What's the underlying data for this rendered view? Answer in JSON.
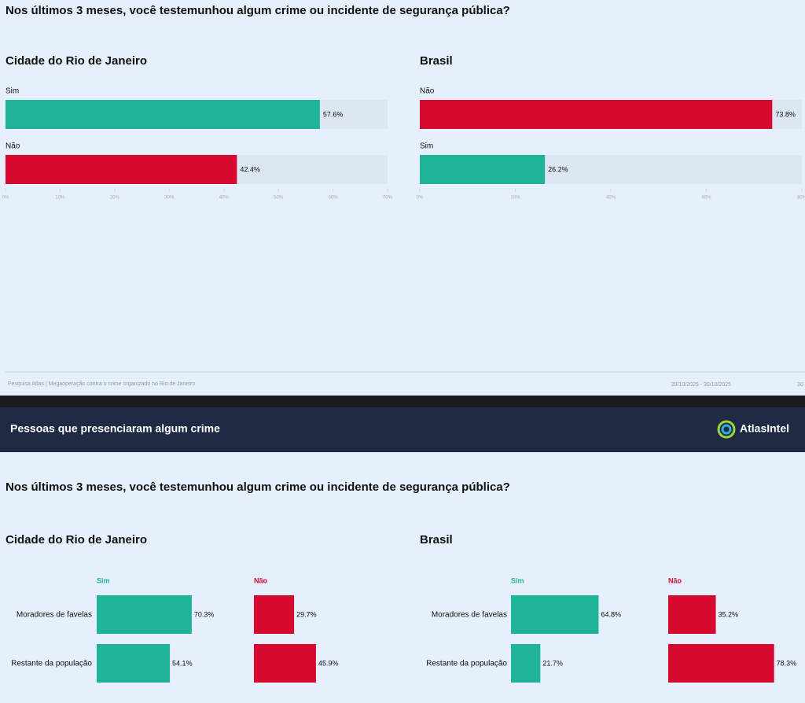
{
  "top": {
    "question": "Nos últimos 3 meses, você testemunhou algum crime ou incidente de segurança pública?",
    "footer": {
      "source": "Pesquisa Atlas | Megaoperação contra o crime organizado no Rio de Janeiro",
      "dates": "29/10/2025 - 30/10/2025",
      "page": "30"
    }
  },
  "banner": {
    "title": "Pessoas que presenciaram algum crime",
    "brand": "AtlasIntel"
  },
  "bottom": {
    "question": "Nos últimos 3 meses, você testemunhou algum crime ou incidente de segurança pública?"
  },
  "chart_data": [
    {
      "type": "hbar",
      "title": "Cidade do Rio de Janeiro",
      "categories": [
        "Sim",
        "Não"
      ],
      "values": [
        57.6,
        42.4
      ],
      "value_labels": [
        "57.6%",
        "42.4%"
      ],
      "colors": [
        "#1fb39a",
        "#d60a2e"
      ],
      "xlim": [
        0,
        70
      ],
      "xticks": [
        {
          "value": 0,
          "label": "0%"
        },
        {
          "value": 10,
          "label": "10%"
        },
        {
          "value": 20,
          "label": "20%"
        },
        {
          "value": 30,
          "label": "30%"
        },
        {
          "value": 40,
          "label": "40%"
        },
        {
          "value": 50,
          "label": "50%"
        },
        {
          "value": 60,
          "label": "60%"
        },
        {
          "value": 70,
          "label": "70%"
        }
      ]
    },
    {
      "type": "hbar",
      "title": "Brasil",
      "categories": [
        "Não",
        "Sim"
      ],
      "values": [
        73.8,
        26.2
      ],
      "value_labels": [
        "73.8%",
        "26.2%"
      ],
      "colors": [
        "#d60a2e",
        "#1fb39a"
      ],
      "xlim": [
        0,
        80
      ],
      "xticks": [
        {
          "value": 0,
          "label": "0%"
        },
        {
          "value": 20,
          "label": "20%"
        },
        {
          "value": 40,
          "label": "40%"
        },
        {
          "value": 60,
          "label": "60%"
        },
        {
          "value": 80,
          "label": "80%"
        }
      ]
    },
    {
      "type": "hbar_panels",
      "title": "Cidade do Rio de Janeiro",
      "categories": [
        "Moradores de favelas",
        "Restante da população"
      ],
      "series": [
        {
          "name": "Sim",
          "color": "#1fb39a",
          "values": [
            70.3,
            54.1
          ],
          "value_labels": [
            "70.3%",
            "54.1%"
          ]
        },
        {
          "name": "Não",
          "color": "#d60a2e",
          "values": [
            29.7,
            45.9
          ],
          "value_labels": [
            "29.7%",
            "45.9%"
          ]
        }
      ]
    },
    {
      "type": "hbar_panels",
      "title": "Brasil",
      "categories": [
        "Moradores de favelas",
        "Restante da população"
      ],
      "series": [
        {
          "name": "Sim",
          "color": "#1fb39a",
          "values": [
            64.8,
            21.7
          ],
          "value_labels": [
            "64.8%",
            "21.7%"
          ]
        },
        {
          "name": "Não",
          "color": "#d60a2e",
          "values": [
            35.2,
            78.3
          ],
          "value_labels": [
            "35.2%",
            "78.3%"
          ]
        }
      ]
    }
  ]
}
